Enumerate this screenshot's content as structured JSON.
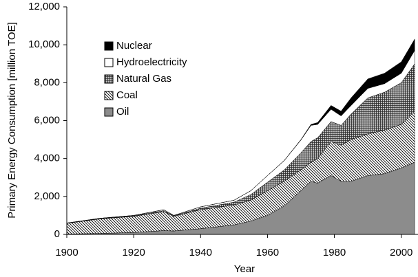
{
  "chart_data": {
    "type": "stacked_area",
    "xlabel": "Year",
    "ylabel": "Primary Energy Consumption [million TOE]",
    "x": [
      1900,
      1910,
      1920,
      1929,
      1932,
      1940,
      1950,
      1955,
      1960,
      1965,
      1970,
      1973,
      1975,
      1979,
      1982,
      1985,
      1990,
      1995,
      2000,
      2004
    ],
    "series": [
      {
        "name": "Oil",
        "color": "#8c8c8c",
        "pattern": "solid",
        "values": [
          20,
          50,
          100,
          200,
          180,
          300,
          500,
          700,
          1000,
          1500,
          2300,
          2800,
          2700,
          3100,
          2800,
          2800,
          3100,
          3200,
          3500,
          3800
        ]
      },
      {
        "name": "Coal",
        "color": "#000000",
        "pattern": "hatch",
        "values": [
          560,
          770,
          850,
          1000,
          770,
          1000,
          1050,
          1100,
          1300,
          1300,
          1100,
          1000,
          1300,
          1800,
          1900,
          2200,
          2200,
          2300,
          2300,
          2700
        ]
      },
      {
        "name": "Natural Gas",
        "color": "#000000",
        "pattern": "crosshatch",
        "values": [
          10,
          15,
          25,
          50,
          30,
          80,
          150,
          300,
          450,
          600,
          900,
          1100,
          1100,
          1050,
          1050,
          1350,
          1900,
          2000,
          2200,
          2500
        ]
      },
      {
        "name": "Hydroelectricity",
        "color": "#ffffff",
        "pattern": "solid",
        "values": [
          10,
          15,
          25,
          50,
          20,
          70,
          100,
          200,
          350,
          490,
          680,
          850,
          700,
          650,
          500,
          450,
          500,
          450,
          500,
          700
        ]
      },
      {
        "name": "Nuclear",
        "color": "#000000",
        "pattern": "solid",
        "values": [
          0,
          0,
          0,
          0,
          0,
          0,
          0,
          0,
          0,
          10,
          20,
          50,
          100,
          200,
          250,
          400,
          500,
          550,
          600,
          600
        ]
      }
    ],
    "xlim": [
      1900,
      2005
    ],
    "xticks": [
      1900,
      1920,
      1940,
      1960,
      1980,
      2000
    ],
    "ylim": [
      0,
      12000
    ],
    "yticks": [
      0,
      {
        "value": 2000,
        "label": "2,000"
      },
      {
        "value": 4000,
        "label": "4,000"
      },
      {
        "value": 6000,
        "label": "6,000"
      },
      {
        "value": 8000,
        "label": "8,000"
      },
      {
        "value": 10000,
        "label": "10,000"
      },
      {
        "value": 12000,
        "label": "12,000"
      }
    ],
    "legend": "upper left"
  }
}
